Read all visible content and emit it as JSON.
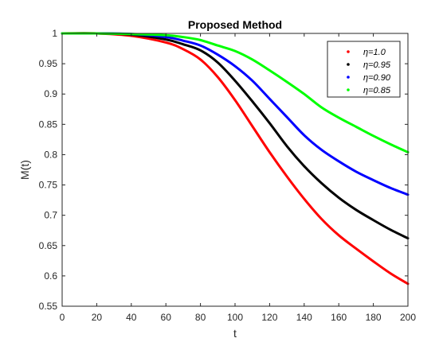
{
  "chart_data": {
    "type": "line",
    "title": "Proposed Method",
    "xlabel": "t",
    "ylabel": "M(t)",
    "xlim": [
      0,
      200
    ],
    "ylim": [
      0.55,
      1
    ],
    "x_ticks": [
      0,
      20,
      40,
      60,
      80,
      100,
      120,
      140,
      160,
      180,
      200
    ],
    "y_ticks": [
      0.55,
      0.6,
      0.65,
      0.7,
      0.75,
      0.8,
      0.85,
      0.9,
      0.95,
      1
    ],
    "y_tick_labels": [
      "0.55",
      "0.6",
      "0.65",
      "0.7",
      "0.75",
      "0.8",
      "0.85",
      "0.9",
      "0.95",
      "1"
    ],
    "grid": false,
    "legend_position": "top-right",
    "x": [
      0,
      20,
      40,
      60,
      70,
      80,
      90,
      100,
      110,
      120,
      130,
      140,
      150,
      160,
      170,
      180,
      190,
      200
    ],
    "series": [
      {
        "name": "η=1.0",
        "color": "#ff0000",
        "values": [
          1,
          1,
          0.996,
          0.985,
          0.974,
          0.957,
          0.928,
          0.89,
          0.847,
          0.804,
          0.764,
          0.727,
          0.694,
          0.667,
          0.645,
          0.624,
          0.604,
          0.587
        ]
      },
      {
        "name": "η=0.95",
        "color": "#000000",
        "values": [
          1,
          1,
          0.998,
          0.99,
          0.982,
          0.972,
          0.952,
          0.922,
          0.888,
          0.852,
          0.814,
          0.781,
          0.753,
          0.729,
          0.709,
          0.692,
          0.676,
          0.662
        ]
      },
      {
        "name": "η=0.90",
        "color": "#0000ff",
        "values": [
          1,
          1,
          0.999,
          0.994,
          0.988,
          0.98,
          0.965,
          0.946,
          0.922,
          0.892,
          0.862,
          0.832,
          0.808,
          0.789,
          0.772,
          0.758,
          0.745,
          0.734
        ]
      },
      {
        "name": "η=0.85",
        "color": "#00ff00",
        "values": [
          1,
          1,
          0.999,
          0.997,
          0.994,
          0.989,
          0.98,
          0.971,
          0.957,
          0.939,
          0.92,
          0.9,
          0.878,
          0.861,
          0.846,
          0.831,
          0.817,
          0.804
        ]
      }
    ]
  }
}
